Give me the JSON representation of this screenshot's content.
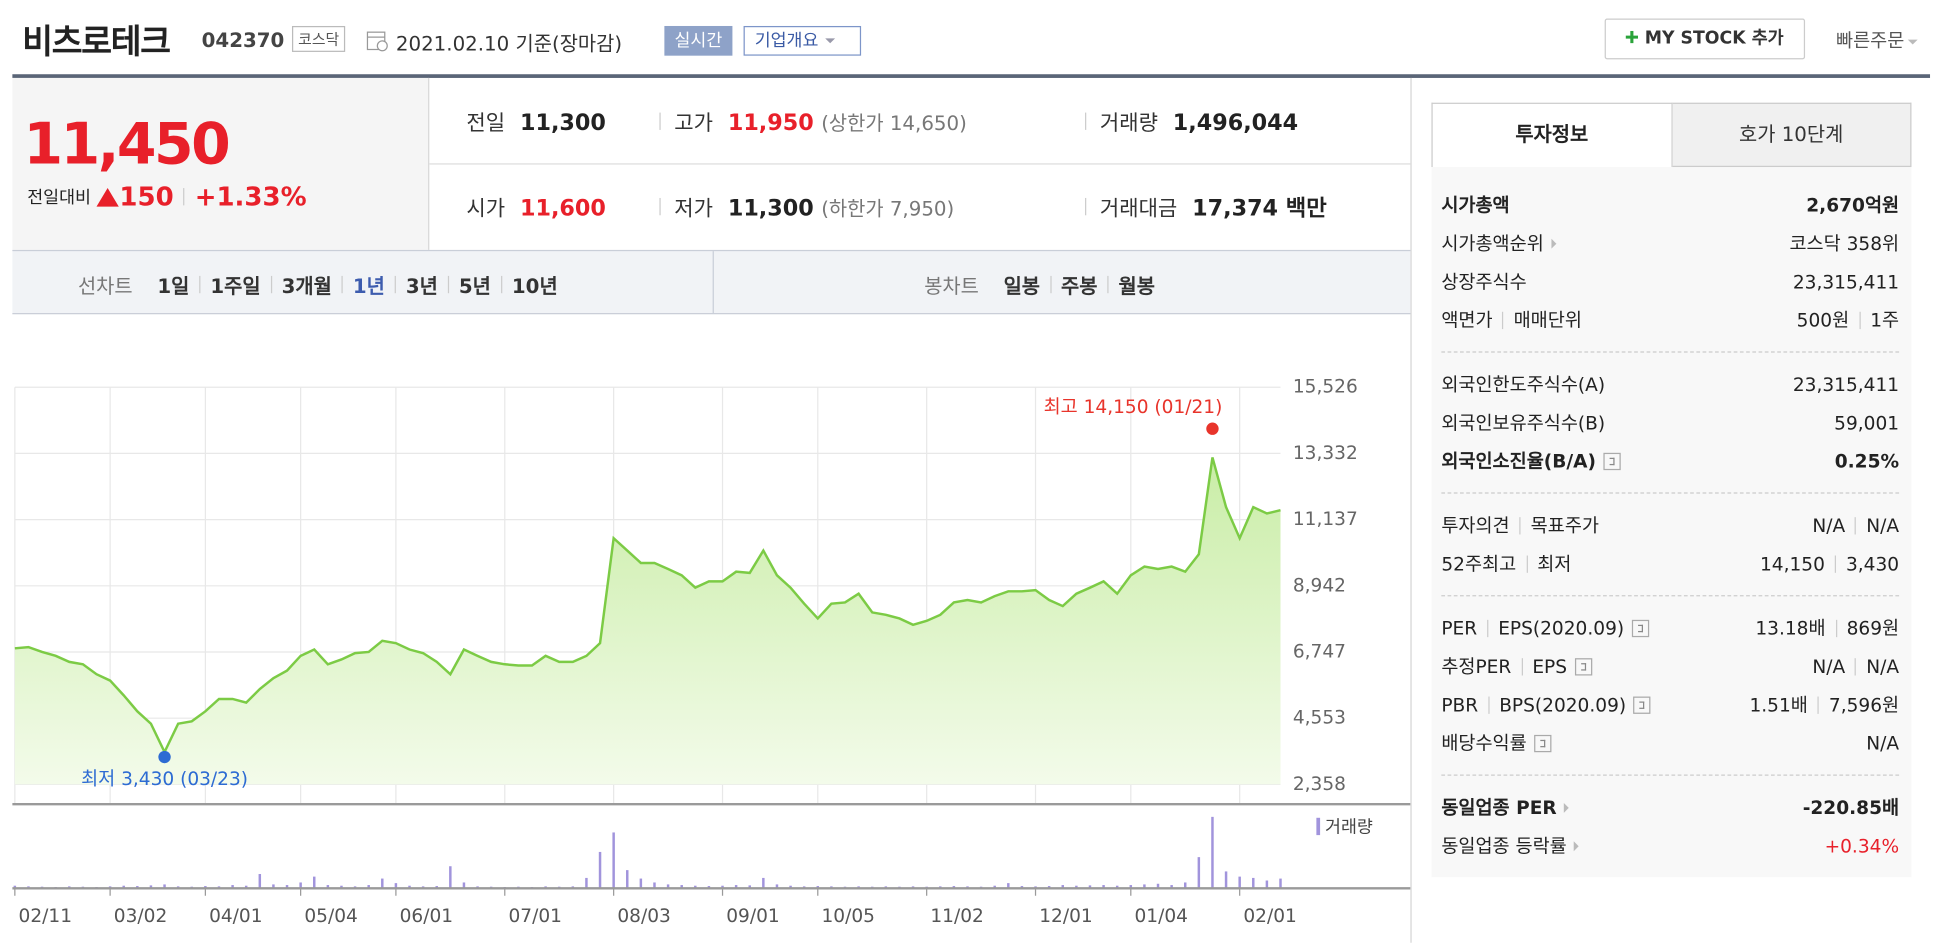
{
  "header": {
    "name": "비츠로테크",
    "code": "042370",
    "market": "코스닥",
    "date": "2021.02.10",
    "basis": "기준(장마감)",
    "realtime": "실시간",
    "overview": "기업개요",
    "mystock": "MY STOCK 추가",
    "quick": "빠른주문"
  },
  "quote": {
    "price": "11,450",
    "change_label": "전일대비",
    "change": "150",
    "change_pct": "+1.33%",
    "cells": [
      {
        "label": "전일",
        "value": "11,300"
      },
      {
        "label": "고가",
        "value": "11,950",
        "note": "(상한가 14,650)",
        "red": true
      },
      {
        "label": "거래량",
        "value": "1,496,044"
      },
      {
        "label": "시가",
        "value": "11,600",
        "red": true
      },
      {
        "label": "저가",
        "value": "11,300",
        "note": "(하한가 7,950)"
      },
      {
        "label": "거래대금",
        "value": "17,374 백만"
      }
    ]
  },
  "tabs": {
    "line_label": "선차트",
    "line_items": [
      "1일",
      "1주일",
      "3개월",
      "1년",
      "3년",
      "5년",
      "10년"
    ],
    "line_active": 3,
    "candle_label": "봉차트",
    "candle_items": [
      "일봉",
      "주봉",
      "월봉"
    ]
  },
  "chart_data": [
    {
      "type": "area",
      "categories": [
        "02/11",
        null,
        null,
        null,
        null,
        null,
        null,
        "03/02",
        null,
        null,
        null,
        null,
        null,
        null,
        "04/01",
        null,
        null,
        null,
        null,
        null,
        null,
        "05/04",
        null,
        null,
        null,
        null,
        null,
        null,
        "06/01",
        null,
        null,
        null,
        null,
        null,
        null,
        null,
        "07/01",
        null,
        null,
        null,
        null,
        null,
        null,
        null,
        "08/03",
        null,
        null,
        null,
        null,
        null,
        null,
        null,
        "09/01",
        null,
        null,
        null,
        null,
        null,
        null,
        "10/05",
        null,
        null,
        null,
        null,
        null,
        null,
        null,
        "11/02",
        null,
        null,
        null,
        null,
        null,
        null,
        null,
        "12/01",
        null,
        null,
        null,
        null,
        null,
        null,
        "01/04",
        null,
        null,
        null,
        null,
        null,
        null,
        null,
        "02/01",
        null,
        null,
        null
      ],
      "values": [
        6870,
        6910,
        6750,
        6620,
        6420,
        6340,
        6010,
        5800,
        5310,
        4780,
        4370,
        3430,
        4370,
        4450,
        4780,
        5190,
        5190,
        5070,
        5520,
        5880,
        6130,
        6620,
        6830,
        6340,
        6500,
        6710,
        6750,
        7120,
        7040,
        6830,
        6710,
        6420,
        6010,
        6830,
        6620,
        6420,
        6340,
        6300,
        6300,
        6620,
        6420,
        6420,
        6620,
        7040,
        10520,
        10110,
        9700,
        9700,
        9500,
        9290,
        8880,
        9090,
        9090,
        9410,
        9370,
        10110,
        9290,
        8880,
        8350,
        7860,
        8350,
        8390,
        8680,
        8060,
        7980,
        7860,
        7650,
        7780,
        7980,
        8390,
        8470,
        8390,
        8600,
        8760,
        8760,
        8800,
        8470,
        8270,
        8680,
        8880,
        9090,
        8680,
        9290,
        9580,
        9500,
        9580,
        9410,
        9990,
        13200,
        11550,
        10520,
        11550,
        11340,
        11450
      ],
      "color": "#7ccb45",
      "ylim": [
        2358,
        15526
      ],
      "yticks": [
        {
          "value": 2358,
          "label": "2,358"
        },
        {
          "value": 4553,
          "label": "4,553"
        },
        {
          "value": 6747,
          "label": "6,747"
        },
        {
          "value": 8942,
          "label": "8,942"
        },
        {
          "value": 11137,
          "label": "11,137"
        },
        {
          "value": 13332,
          "label": "13,332"
        },
        {
          "value": 15526,
          "label": "15,526"
        }
      ],
      "grid": true,
      "annotations": [
        {
          "text": "최고 14,150 (01/21)",
          "value": 14150,
          "color": "#e8342b"
        },
        {
          "text": "최저 3,430 (03/23)",
          "value": 3430,
          "color": "#2d6bd3"
        }
      ]
    },
    {
      "type": "bar",
      "series": [
        {
          "name": "거래량",
          "color": "#a194dc",
          "values": [
            400000,
            300000,
            250000,
            200000,
            300000,
            250000,
            200000,
            300000,
            400000,
            350000,
            450000,
            600000,
            300000,
            250000,
            350000,
            300000,
            500000,
            400000,
            2200000,
            600000,
            500000,
            900000,
            1800000,
            500000,
            400000,
            300000,
            500000,
            1500000,
            800000,
            400000,
            300000,
            350000,
            3400000,
            900000,
            300000,
            250000,
            200000,
            250000,
            200000,
            300000,
            250000,
            300000,
            1600000,
            5600000,
            8600000,
            2800000,
            1500000,
            900000,
            600000,
            500000,
            400000,
            350000,
            400000,
            500000,
            450000,
            1600000,
            600000,
            400000,
            300000,
            350000,
            300000,
            250000,
            300000,
            250000,
            300000,
            250000,
            300000,
            250000,
            300000,
            350000,
            300000,
            250000,
            400000,
            800000,
            350000,
            300000,
            350000,
            500000,
            400000,
            450000,
            500000,
            400000,
            500000,
            600000,
            700000,
            500000,
            900000,
            4800000,
            11000000,
            2600000,
            1800000,
            1600000,
            1200000,
            1496044
          ]
        }
      ],
      "ylim": [
        0,
        12000000
      ]
    }
  ],
  "invest": {
    "tabs": [
      "투자정보",
      "호가 10단계"
    ],
    "sections": [
      [
        {
          "label": [
            "시가총액"
          ],
          "value": [
            "2,670억원"
          ],
          "bold": true
        },
        {
          "label": [
            "시가총액순위"
          ],
          "value": [
            "코스닥 358위"
          ],
          "arrow": true
        },
        {
          "label": [
            "상장주식수"
          ],
          "value": [
            "23,315,411"
          ]
        },
        {
          "label": [
            "액면가",
            "매매단위"
          ],
          "value": [
            "500원",
            "1주"
          ]
        }
      ],
      [
        {
          "label": [
            "외국인한도주식수(A)"
          ],
          "value": [
            "23,315,411"
          ]
        },
        {
          "label": [
            "외국인보유주식수(B)"
          ],
          "value": [
            "59,001"
          ]
        },
        {
          "label": [
            "외국인소진율(B/A)"
          ],
          "value": [
            "0.25%"
          ],
          "bold": true,
          "help": true
        }
      ],
      [
        {
          "label": [
            "투자의견",
            "목표주가"
          ],
          "value": [
            "N/A",
            "N/A"
          ]
        },
        {
          "label": [
            "52주최고",
            "최저"
          ],
          "value": [
            "14,150",
            "3,430"
          ]
        }
      ],
      [
        {
          "label": [
            "PER",
            "EPS(2020.09)"
          ],
          "value": [
            "13.18배",
            "869원"
          ],
          "help": true
        },
        {
          "label": [
            "추정PER",
            "EPS"
          ],
          "value": [
            "N/A",
            "N/A"
          ],
          "help": true
        },
        {
          "label": [
            "PBR",
            "BPS(2020.09)"
          ],
          "value": [
            "1.51배",
            "7,596원"
          ],
          "help": true
        },
        {
          "label": [
            "배당수익률"
          ],
          "value": [
            "N/A"
          ],
          "help": true
        }
      ],
      [
        {
          "label": [
            "동일업종 PER"
          ],
          "value": [
            "-220.85배"
          ],
          "bold": true,
          "arrow": true
        },
        {
          "label": [
            "동일업종 등락률"
          ],
          "value": [
            "+0.34%"
          ],
          "arrow": true,
          "red": true
        }
      ]
    ]
  }
}
